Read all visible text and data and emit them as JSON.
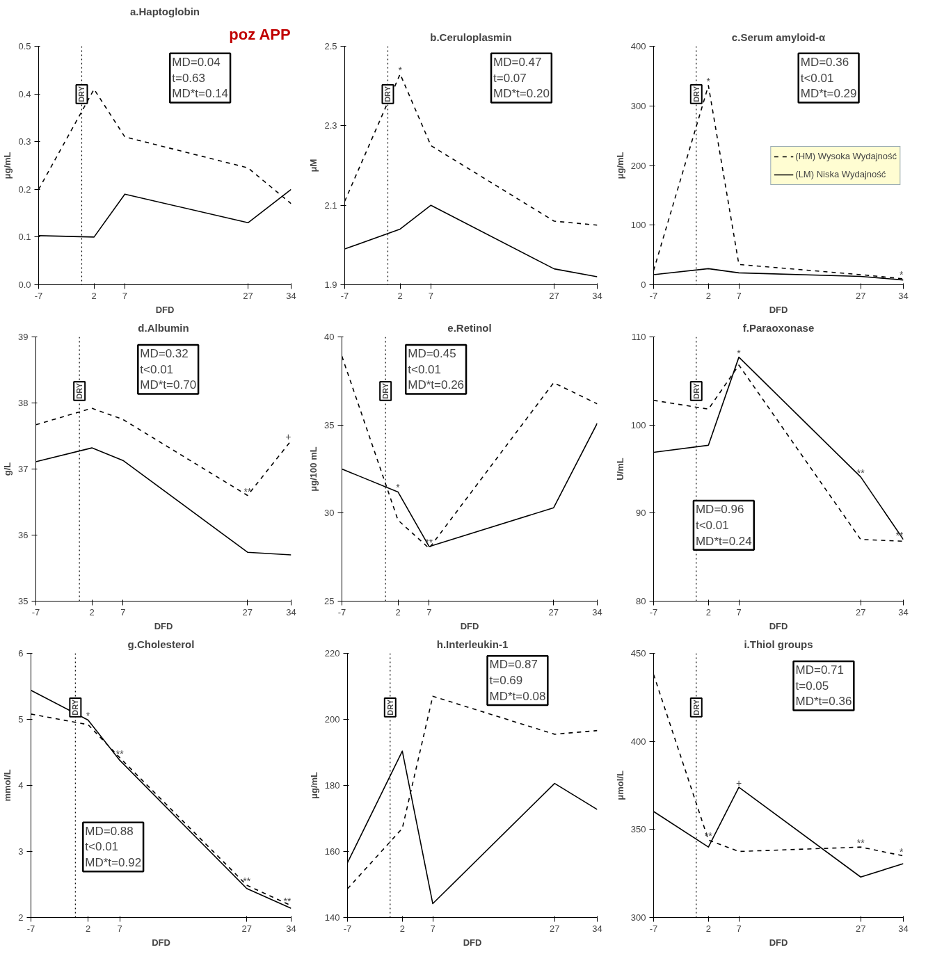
{
  "chart_data": [
    {
      "type": "line",
      "title": "a.Haptoglobin",
      "subtitle": "poz APP",
      "xlabel": "DFD",
      "ylabel": "μg/mL",
      "x": [
        -7,
        2,
        7,
        27,
        34
      ],
      "xlim": [
        -7,
        34
      ],
      "xticks": [
        -7,
        2,
        7,
        27,
        34
      ],
      "ylim": [
        0,
        0.5
      ],
      "yticks": [
        {
          "value": 0,
          "label": "0.0"
        },
        0.1,
        0.2,
        0.3,
        0.4,
        0.5
      ],
      "series": [
        {
          "color": "#000000",
          "line_style": "dashed",
          "values": [
            0.2,
            0.41,
            0.31,
            0.245,
            0.17
          ]
        },
        {
          "color": "#000000",
          "line_style": "solid",
          "values": [
            0.103,
            0.1,
            0.19,
            0.13,
            0.2
          ]
        }
      ],
      "ref_lines": [
        {
          "axis": "x",
          "value": 0,
          "label": "DRY",
          "line_style": "dotted"
        }
      ],
      "annotations": [
        "MD=0.04\nt=0.63\nMD*t=0.14"
      ]
    },
    {
      "type": "line",
      "title": "b.Ceruloplasmin",
      "ylabel": "μM",
      "x": [
        -7,
        2,
        7,
        27,
        34
      ],
      "xlim": [
        -7,
        34
      ],
      "xticks": [
        -7,
        2,
        7,
        27,
        34
      ],
      "ylim": [
        1.9,
        2.5
      ],
      "yticks": [
        1.9,
        2.1,
        2.3,
        2.5
      ],
      "series": [
        {
          "color": "#000000",
          "line_style": "dashed",
          "values": [
            2.11,
            2.43,
            2.25,
            2.06,
            2.05
          ]
        },
        {
          "color": "#000000",
          "line_style": "solid",
          "values": [
            1.99,
            2.04,
            2.1,
            1.94,
            1.92
          ]
        }
      ],
      "ref_lines": [
        {
          "axis": "x",
          "value": 0,
          "label": "DRY",
          "line_style": "dotted"
        }
      ],
      "annotations": [
        "MD=0.47\nt=0.07\nMD*t=0.20",
        {
          "text": "*",
          "x": 2,
          "y": 2.43
        }
      ]
    },
    {
      "type": "line",
      "title": "c.Serum amyloid-α",
      "xlabel": "DFD",
      "ylabel": "μg/mL",
      "x": [
        -7,
        2,
        7,
        27,
        34
      ],
      "xlim": [
        -7,
        34
      ],
      "xticks": [
        -7,
        2,
        7,
        27,
        34
      ],
      "ylim": [
        0,
        400
      ],
      "yticks": [
        0,
        100,
        200,
        300,
        400
      ],
      "legend": "right",
      "series": [
        {
          "name": "(HM) Wysoka Wydajność",
          "color": "#000000",
          "line_style": "dashed",
          "values": [
            24,
            334,
            34,
            17,
            10
          ]
        },
        {
          "name": "(LM) Niska Wydajność",
          "color": "#000000",
          "line_style": "solid",
          "values": [
            17,
            27,
            20,
            14,
            8
          ]
        }
      ],
      "ref_lines": [
        {
          "axis": "x",
          "value": 0,
          "label": "DRY",
          "line_style": "dotted"
        }
      ],
      "annotations": [
        "MD=0.36\nt<0.01\nMD*t=0.29",
        {
          "text": "*",
          "x": 2,
          "y": 334
        },
        {
          "text": "*",
          "x": 34,
          "y": 10
        }
      ]
    },
    {
      "type": "line",
      "title": "d.Albumin",
      "xlabel": "DFD",
      "ylabel": "g/L",
      "x": [
        -7,
        2,
        7,
        27,
        34
      ],
      "xlim": [
        -7,
        34
      ],
      "xticks": [
        -7,
        2,
        7,
        27,
        34
      ],
      "ylim": [
        35,
        39
      ],
      "yticks": [
        35,
        36,
        37,
        38,
        39
      ],
      "series": [
        {
          "color": "#000000",
          "line_style": "dashed",
          "values": [
            37.67,
            37.92,
            37.75,
            36.6,
            37.43
          ]
        },
        {
          "color": "#000000",
          "line_style": "solid",
          "values": [
            37.11,
            37.32,
            37.13,
            35.74,
            35.7
          ]
        }
      ],
      "ref_lines": [
        {
          "axis": "x",
          "value": 0,
          "label": "DRY",
          "line_style": "dotted"
        }
      ],
      "annotations": [
        "MD=0.32\nt<0.01\nMD*t=0.70",
        {
          "text": "**",
          "x": 27,
          "y": 36.6
        },
        {
          "text": "+",
          "x": 34,
          "y": 37.43
        }
      ]
    },
    {
      "type": "line",
      "title": "e.Retinol",
      "xlabel": "DFD",
      "ylabel": "μg/100 mL",
      "x": [
        -7,
        2,
        7,
        27,
        34
      ],
      "xlim": [
        -7,
        34
      ],
      "xticks": [
        -7,
        2,
        7,
        27,
        34
      ],
      "ylim": [
        25,
        40
      ],
      "yticks": [
        25,
        30,
        35,
        40
      ],
      "series": [
        {
          "color": "#000000",
          "line_style": "dashed",
          "values": [
            38.9,
            29.6,
            28.0,
            37.4,
            36.2
          ]
        },
        {
          "color": "#000000",
          "line_style": "solid",
          "values": [
            32.5,
            31.2,
            28.1,
            30.3,
            35.1
          ]
        }
      ],
      "ref_lines": [
        {
          "axis": "x",
          "value": 0,
          "label": "DRY",
          "line_style": "dotted"
        }
      ],
      "annotations": [
        "MD=0.45\nt<0.01\nMD*t=0.26",
        {
          "text": "*",
          "x": 2,
          "y": 31.2
        },
        {
          "text": "**",
          "x": 7,
          "y": 28.1
        }
      ]
    },
    {
      "type": "line",
      "title": "f.Paraoxonase",
      "xlabel": "DFD",
      "ylabel": "U/mL",
      "x": [
        -7,
        2,
        7,
        27,
        34
      ],
      "xlim": [
        -7,
        34
      ],
      "xticks": [
        -7,
        2,
        7,
        27,
        34
      ],
      "ylim": [
        80,
        110
      ],
      "yticks": [
        80,
        90,
        100,
        110
      ],
      "series": [
        {
          "color": "#000000",
          "line_style": "dashed",
          "values": [
            102.8,
            101.8,
            106.8,
            87.0,
            86.8
          ]
        },
        {
          "color": "#000000",
          "line_style": "solid",
          "values": [
            96.9,
            97.7,
            107.7,
            94.1,
            87.0
          ]
        }
      ],
      "ref_lines": [
        {
          "axis": "x",
          "value": 0,
          "label": "DRY",
          "line_style": "dotted"
        }
      ],
      "annotations": [
        "MD=0.96\nt<0.01\nMD*t=0.24",
        {
          "text": "*",
          "x": 7,
          "y": 107.7
        },
        {
          "text": "**",
          "x": 27,
          "y": 94.1
        },
        {
          "text": "**",
          "x": 34,
          "y": 87.0
        }
      ]
    },
    {
      "type": "line",
      "title": "g.Cholesterol",
      "xlabel": "DFD",
      "ylabel": "mmol/L",
      "x": [
        -7,
        2,
        7,
        27,
        34
      ],
      "xlim": [
        -7,
        34
      ],
      "xticks": [
        -7,
        2,
        7,
        27,
        34
      ],
      "ylim": [
        2,
        6
      ],
      "yticks": [
        2,
        3,
        4,
        5,
        6
      ],
      "series": [
        {
          "color": "#000000",
          "line_style": "dashed",
          "values": [
            5.08,
            4.92,
            4.42,
            2.49,
            2.18
          ]
        },
        {
          "color": "#000000",
          "line_style": "solid",
          "values": [
            5.44,
            4.99,
            4.38,
            2.44,
            2.14
          ]
        }
      ],
      "ref_lines": [
        {
          "axis": "x",
          "value": 0,
          "label": "DRY",
          "line_style": "dotted"
        }
      ],
      "annotations": [
        "MD=0.88\nt<0.01\nMD*t=0.92",
        {
          "text": "*",
          "x": 2,
          "y": 4.99
        },
        {
          "text": "**",
          "x": 7,
          "y": 4.42
        },
        {
          "text": "**",
          "x": 27,
          "y": 2.49
        },
        {
          "text": "**",
          "x": 34,
          "y": 2.18
        }
      ]
    },
    {
      "type": "line",
      "title": "h.Interleukin-1",
      "xlabel": "DFD",
      "ylabel": "μg/mL",
      "x": [
        -7,
        2,
        7,
        27,
        34
      ],
      "xlim": [
        -7,
        34
      ],
      "xticks": [
        -7,
        2,
        7,
        27,
        34
      ],
      "ylim": [
        140,
        220
      ],
      "yticks": [
        140,
        160,
        180,
        200,
        220
      ],
      "series": [
        {
          "color": "#000000",
          "line_style": "dashed",
          "values": [
            148.7,
            167,
            207,
            195.5,
            196.6
          ]
        },
        {
          "color": "#000000",
          "line_style": "solid",
          "values": [
            156.6,
            190.4,
            144.2,
            180.6,
            172.7
          ]
        }
      ],
      "ref_lines": [
        {
          "axis": "x",
          "value": 0,
          "label": "DRY",
          "line_style": "dotted"
        }
      ],
      "annotations": [
        "MD=0.87\nt=0.69\nMD*t=0.08"
      ]
    },
    {
      "type": "line",
      "title": "i.Thiol groups",
      "xlabel": "DFD",
      "ylabel": "μmol/L",
      "x": [
        -7,
        2,
        7,
        27,
        34
      ],
      "xlim": [
        -7,
        34
      ],
      "xticks": [
        -7,
        2,
        7,
        27,
        34
      ],
      "ylim": [
        300,
        450
      ],
      "yticks": [
        300,
        350,
        400,
        450
      ],
      "series": [
        {
          "color": "#000000",
          "line_style": "dashed",
          "values": [
            438,
            344,
            337.5,
            340,
            335
          ]
        },
        {
          "color": "#000000",
          "line_style": "solid",
          "values": [
            360.2,
            340,
            374,
            323,
            330.6
          ]
        }
      ],
      "ref_lines": [
        {
          "axis": "x",
          "value": 0,
          "label": "DRY",
          "line_style": "dotted"
        }
      ],
      "annotations": [
        "MD=0.71\nt=0.05\nMD*t=0.36",
        {
          "text": "**",
          "x": 2,
          "y": 344
        },
        {
          "text": "+",
          "x": 7,
          "y": 374
        },
        {
          "text": "**",
          "x": 27,
          "y": 340
        },
        {
          "text": "*",
          "x": 34,
          "y": 335
        }
      ]
    }
  ]
}
